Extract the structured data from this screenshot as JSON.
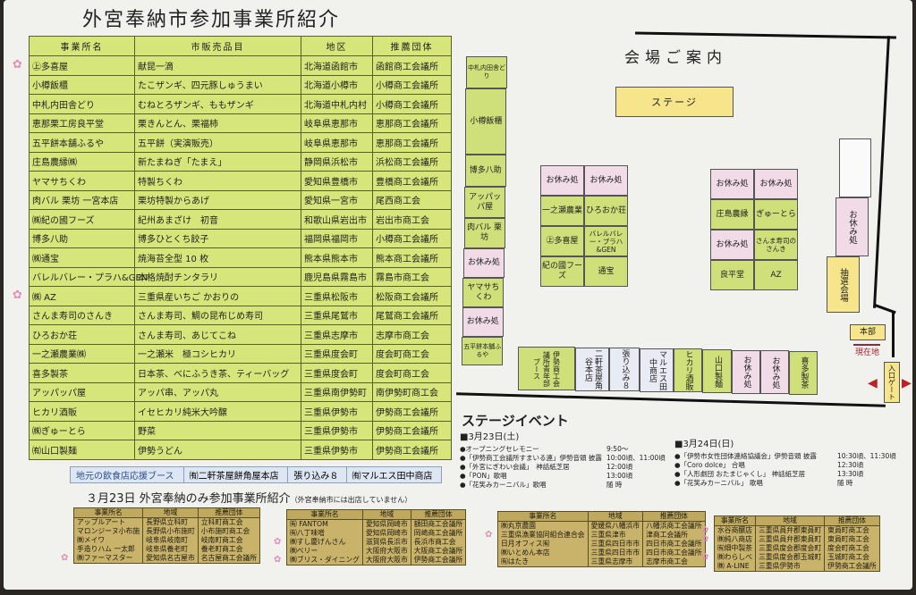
{
  "title": "外宮奉納市参加事業所紹介",
  "main_table": {
    "headers": [
      "事業所名",
      "市販売品目",
      "地区",
      "推薦団体"
    ],
    "rows": [
      [
        "㊤多喜屋",
        "献昆一滴",
        "北海道函館市",
        "函館商工会議所"
      ],
      [
        "小樽飯櫃",
        "たこザンギ、四元豚しゅうまい",
        "北海道小樽市",
        "小樽商工会議所"
      ],
      [
        "中札内田舎どり",
        "むねとろザンギ、ももザンギ",
        "北海道中札内村",
        "小樽商工会議所"
      ],
      [
        "恵那栗工房良平堂",
        "栗きんとん、栗福柿",
        "岐阜県恵那市",
        "恵那商工会議所"
      ],
      [
        "五平餅本舗ふるや",
        "五平餅（実演販売）",
        "岐阜県恵那市",
        "恵那商工会議所"
      ],
      [
        "庄島農縁㈱",
        "新たまねぎ「たまえ」",
        "静岡県浜松市",
        "浜松商工会議所"
      ],
      [
        "ヤマサちくわ",
        "特製ちくわ",
        "愛知県豊橋市",
        "豊橋商工会議所"
      ],
      [
        "肉バル 栗坊 一宮本店",
        "栗坊特製からあげ",
        "愛知県一宮市",
        "尾西商工会"
      ],
      [
        "㈱紀の國フーズ",
        "紀州あまざけ　初音",
        "和歌山県岩出市",
        "岩出市商工会"
      ],
      [
        "博多八助",
        "博多ひとくち餃子",
        "福岡県福岡市",
        "小樽商工会議所"
      ],
      [
        "㈱通宝",
        "焼海苔全型 10 枚",
        "熊本県熊本市",
        "熊本商工会議所"
      ],
      [
        "バレルバレー・プラハ&GEN",
        "本格焼酎チンタラリ",
        "鹿児島県霧島市",
        "霧島市商工会"
      ],
      [
        "㈱ AZ",
        "三重県産いちご かおりの",
        "三重県松阪市",
        "松阪商工会議所"
      ],
      [
        "さんま寿司のさんき",
        "さんま寿司、鯛の昆布じめ寿司",
        "三重県尾鷲市",
        "尾鷲商工会議所"
      ],
      [
        "ひろおか荘",
        "さんま寿司、あじてこね",
        "三重県志摩市",
        "志摩市商工会"
      ],
      [
        "一之瀬農業㈱",
        "一之瀬米　極コシヒカリ",
        "三重県度会町",
        "度会町商工会"
      ],
      [
        "喜多製茶",
        "日本茶、べにふうき茶、ティーバッグ",
        "三重県度会町",
        "度会町商工会"
      ],
      [
        "アッパッパ屋",
        "アッパ串、アッパ丸",
        "三重県南伊勢町",
        "南伊勢町商工会"
      ],
      [
        "ヒカリ酒販",
        "イセヒカリ純米大吟醸",
        "三重県伊勢市",
        "伊勢商工会議所"
      ],
      [
        "㈱ぎゅーとら",
        "野菜",
        "三重県伊勢市",
        "伊勢商工会議所"
      ],
      [
        "㈲山口製麺",
        "伊勢うどん",
        "三重県伊勢市",
        "伊勢商工会議所"
      ]
    ],
    "flower_rows": [
      0,
      12
    ]
  },
  "booth_strip": [
    "地元の飲食店応援ブース",
    "㈲二軒茶屋餅角屋本店",
    "張り込み８",
    "㈲マルエス田中商店"
  ],
  "sub": {
    "title": "３月23日 外宮奉納のみ参加事業所紹介",
    "note": "（外宮奉納市には出店していません）"
  },
  "mini_tables": [
    {
      "headers": [
        "事業所名",
        "地域",
        "推薦団体"
      ],
      "rows": [
        [
          "アップルアート",
          "長野県立科町",
          "立科町商工会"
        ],
        [
          "マロンジーヌ小布施",
          "長野県小布施町",
          "小布施町商工会"
        ],
        [
          "㈱メイワ",
          "岐阜県岐南町",
          "岐南町商工会"
        ],
        [
          "手造りハム 一太郎",
          "岐阜県養老町",
          "養老町商工会"
        ],
        [
          "㈱ファーマスター",
          "愛知県名古屋市",
          "名古屋商工会議所"
        ]
      ]
    },
    {
      "headers": [
        "事業所名",
        "地域",
        "推薦団体"
      ],
      "rows": [
        [
          "㈲ FANTOM",
          "愛知県岡崎市",
          "額田商工会議所"
        ],
        [
          "㈲八丁味噌",
          "愛知県岡崎市",
          "岡崎商工会議所"
        ],
        [
          "㈱すし慶げんさん",
          "滋賀県長浜市",
          "長浜市商工会"
        ],
        [
          "㈱ベリー",
          "大阪府大阪市",
          "大阪商工会議所"
        ],
        [
          "㈱ブリス・ダイニング",
          "大阪府大阪市",
          "伊勢商工会議所"
        ]
      ]
    },
    {
      "headers": [
        "事業所名",
        "地域",
        "推薦団体"
      ],
      "rows": [
        [
          "㈱丸京農園",
          "愛媛県八幡浜市",
          "八幡浜商工会議所"
        ],
        [
          "三重県漁業協同組合連合会",
          "三重県津市",
          "津商工会議所"
        ],
        [
          "日月オフィス㈲",
          "三重県四日市市",
          "四日市商工会議所"
        ],
        [
          "㈱いとめん本店",
          "三重県四日市市",
          "四日市商工会議所"
        ],
        [
          "㈲はたき",
          "三重県志摩市",
          "志摩市商工会"
        ]
      ]
    },
    {
      "headers": [
        "事業所名",
        "地域",
        "推薦団体"
      ],
      "rows": [
        [
          "水谷商醸店",
          "三重県員弁郡東員町",
          "東員町商工会"
        ],
        [
          "㈱純八商店",
          "三重県員弁郡東員町",
          "東員町商工会"
        ],
        [
          "㈲畑中製茶",
          "三重県度会郡度会町",
          "度会町商工会"
        ],
        [
          "㈱わらしべ",
          "三重県度会郡玉城町",
          "玉城町商工会"
        ],
        [
          "㈱ A-LINE",
          "三重県伊勢市",
          "伊勢商工会議所"
        ]
      ]
    }
  ],
  "map": {
    "title": "会場ご案内",
    "stage": "ステージ",
    "rest": "お休み処",
    "left_column": [
      "中札内田舎どり",
      "小樽飯櫃",
      "博多八助",
      "アッパッパ屋",
      "肉バル 栗坊",
      "お休み処",
      "ヤマサちくわ",
      "お休み処",
      "五平餅本舗ふるや"
    ],
    "grid1": [
      [
        "お休み処",
        "お休み処"
      ],
      [
        "一之瀬農業",
        "ひろおか荘"
      ],
      [
        "㊤多喜屋",
        "バレルバレー・プラハ&GEN"
      ],
      [
        "紀の國フーズ",
        "通宝"
      ]
    ],
    "grid2": [
      [
        "お休み処",
        "お休み処"
      ],
      [
        "庄島農縁",
        "ぎゅーとら"
      ],
      [
        "お休み処",
        "さんま寿司のさんき"
      ],
      [
        "良平堂",
        "AZ"
      ]
    ],
    "bottom_row": [
      "伊勢商工会議所青年部ブース",
      "二軒茶屋角谷本店",
      "張り込み８",
      "マルエス田中商店",
      "ヒカリ酒販",
      "山口製麺",
      "お休み処",
      "お休み処",
      "喜多製茶"
    ],
    "lottery": "抽選会場",
    "hq": "本部",
    "here": "現在地",
    "gate": "入口ゲート"
  },
  "stage_events": {
    "title": "ステージイベント",
    "day1": {
      "date": "■3月23日(土)",
      "items": [
        [
          "●オープニングセレモニー",
          "9:50～"
        ],
        [
          "●「伊勢商工会議所すまいる連」伊勢音頭 披露",
          "10:00頃、11:00頃"
        ],
        [
          "●「外宮にぎわい会議」　神話紙芝居",
          "12:00頃"
        ],
        [
          "●「PON」歌唱",
          "13:00頃"
        ],
        [
          "●「花笑みカーニバル」歌唱",
          "随 時"
        ]
      ]
    },
    "day2": {
      "date": "■3月24日(日)",
      "items": [
        [
          "●「伊勢市女性団体連絡協議会」伊勢音頭 披露",
          "10:30頃、11:30頃"
        ],
        [
          "●「Coro dolce」 合唱",
          "12:30頃"
        ],
        [
          "●「人形劇団 おたまじゃくし」 神話紙芝居",
          "13:30頃"
        ],
        [
          "●「花笑みカーニバル」 歌唱",
          "随 時"
        ]
      ]
    }
  },
  "colors": {
    "vendor": "#cfe07a",
    "rest": "#f0dbe6",
    "stage": "#f6e58a",
    "mini_table": "#c9b36b",
    "booth_strip": "#dde6f3"
  }
}
